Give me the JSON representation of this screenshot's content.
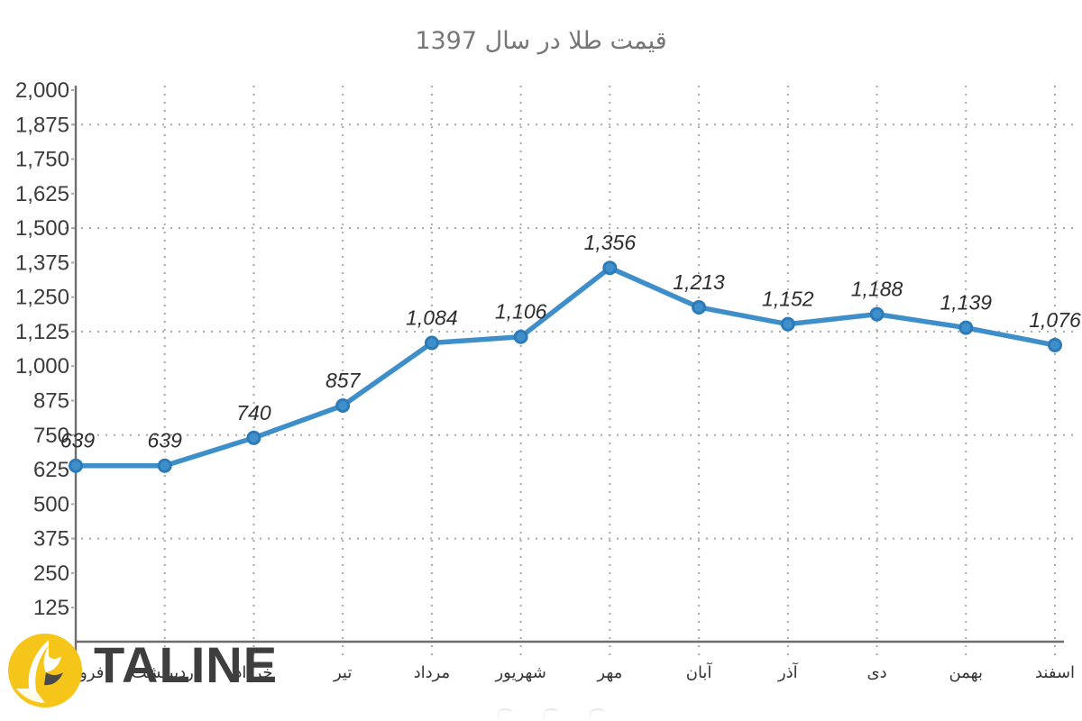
{
  "title": "قیمت طلا در سال 1397",
  "logo": {
    "brand": "TALINE",
    "circle_color": "#f5c51a",
    "text_color": "#3e3e3e"
  },
  "chart_data": {
    "type": "line",
    "title": "قیمت طلا در سال 1397",
    "categories": [
      "فروردین",
      "اردیبهشت",
      "خرداد",
      "تیر",
      "مرداد",
      "شهریور",
      "مهر",
      "آبان",
      "آذر",
      "دی",
      "بهمن",
      "اسفند"
    ],
    "values": [
      639,
      639,
      740,
      857,
      1084,
      1106,
      1356,
      1213,
      1152,
      1188,
      1139,
      1076
    ],
    "point_labels": [
      "639",
      "639",
      "740",
      "857",
      "1,084",
      "1,106",
      "1,356",
      "1,213",
      "1,152",
      "1,188",
      "1,139",
      "1,076"
    ],
    "ylim": [
      0,
      2000
    ],
    "ytick_labels": [
      "2,000",
      "1,875",
      "1,750",
      "1,625",
      "1,500",
      "1,375",
      "1,250",
      "1,125",
      "1,000",
      "875",
      "750",
      "625",
      "500",
      "375",
      "250",
      "125"
    ],
    "grid_values": [
      1875,
      1500,
      1125,
      750,
      375
    ],
    "grid": "dotted",
    "legend_position": "none",
    "xlabel": "",
    "ylabel": "",
    "colors": {
      "line": "#3e8ec9",
      "marker_fill": "#3f90ca",
      "marker_stroke": "#2d7ab8",
      "grid": "#a8a8a8",
      "axis": "#6e6e6e",
      "tick_text": "#3b3b3b",
      "month_text": "#333333",
      "point_label_text": "#2e2e2e",
      "title_text": "#767676"
    }
  }
}
